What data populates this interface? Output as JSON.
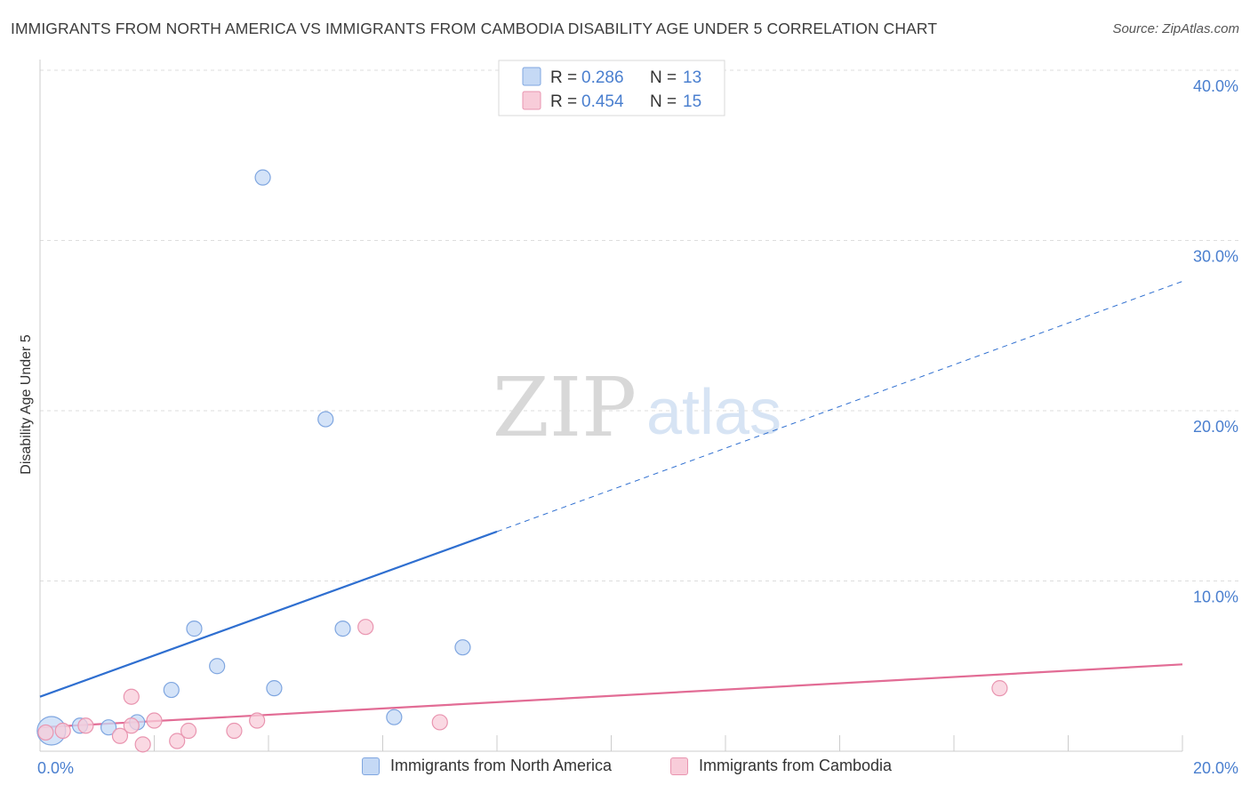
{
  "header": {
    "title": "IMMIGRANTS FROM NORTH AMERICA VS IMMIGRANTS FROM CAMBODIA DISABILITY AGE UNDER 5 CORRELATION CHART",
    "source": "Source: ZipAtlas.com"
  },
  "colors": {
    "blue_fill": "#c5d9f5",
    "blue_stroke": "#7fa6e0",
    "blue_line": "#2f6fd0",
    "pink_fill": "#f8ccd9",
    "pink_stroke": "#e995b0",
    "pink_line": "#e26c95",
    "axis_label": "#4a7fcf",
    "grid": "#dddddd"
  },
  "chart_data": {
    "type": "scatter",
    "title": "IMMIGRANTS FROM NORTH AMERICA VS IMMIGRANTS FROM CAMBODIA DISABILITY AGE UNDER 5 CORRELATION CHART",
    "xlabel": "",
    "ylabel": "Disability Age Under 5",
    "xlim": [
      0,
      20
    ],
    "ylim": [
      0,
      40
    ],
    "x_tick_labels": [
      "0.0%",
      "20.0%"
    ],
    "y_ticks": [
      10,
      20,
      30,
      40
    ],
    "y_tick_labels": [
      "10.0%",
      "20.0%",
      "30.0%",
      "40.0%"
    ],
    "grid": true,
    "legend": {
      "placement": "top-center",
      "entries": [
        {
          "r_label": "R = ",
          "r_value": "0.286",
          "n_label": "N = ",
          "n_value": "13"
        },
        {
          "r_label": "R = ",
          "r_value": "0.454",
          "n_label": "N = ",
          "n_value": "15"
        }
      ]
    },
    "watermark": "ZIPatlas",
    "series": [
      {
        "name": "Immigrants from North America",
        "color": "blue",
        "points": [
          {
            "x": 0.2,
            "y": 1.2,
            "big": true
          },
          {
            "x": 0.7,
            "y": 1.5
          },
          {
            "x": 1.2,
            "y": 1.4
          },
          {
            "x": 1.7,
            "y": 1.7
          },
          {
            "x": 2.3,
            "y": 3.6
          },
          {
            "x": 2.7,
            "y": 7.2
          },
          {
            "x": 3.1,
            "y": 5.0
          },
          {
            "x": 3.9,
            "y": 33.7
          },
          {
            "x": 4.1,
            "y": 3.7
          },
          {
            "x": 5.0,
            "y": 19.5
          },
          {
            "x": 5.3,
            "y": 7.2
          },
          {
            "x": 6.2,
            "y": 2.0
          },
          {
            "x": 7.4,
            "y": 6.1
          }
        ],
        "trend": {
          "x0": 0,
          "y0": 3.2,
          "x1": 8.0,
          "y1": 12.9,
          "dash_to_x": 20,
          "dash_to_y": 27.6
        }
      },
      {
        "name": "Immigrants from Cambodia",
        "color": "pink",
        "points": [
          {
            "x": 0.1,
            "y": 1.1
          },
          {
            "x": 0.4,
            "y": 1.2
          },
          {
            "x": 0.8,
            "y": 1.5
          },
          {
            "x": 1.4,
            "y": 0.9
          },
          {
            "x": 1.6,
            "y": 1.5
          },
          {
            "x": 1.6,
            "y": 3.2
          },
          {
            "x": 1.8,
            "y": 0.4
          },
          {
            "x": 2.0,
            "y": 1.8
          },
          {
            "x": 2.4,
            "y": 0.6
          },
          {
            "x": 2.6,
            "y": 1.2
          },
          {
            "x": 3.4,
            "y": 1.2
          },
          {
            "x": 3.8,
            "y": 1.8
          },
          {
            "x": 5.7,
            "y": 7.3
          },
          {
            "x": 7.0,
            "y": 1.7
          },
          {
            "x": 16.8,
            "y": 3.7
          }
        ],
        "trend": {
          "x0": 0,
          "y0": 1.4,
          "x1": 20,
          "y1": 5.1
        }
      }
    ]
  }
}
